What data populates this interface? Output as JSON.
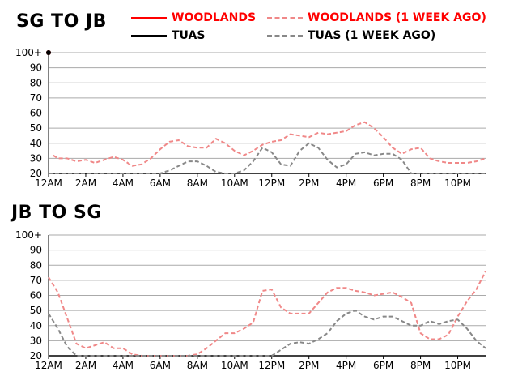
{
  "titles": {
    "top": "SG TO JB",
    "bottom": "JB TO SG"
  },
  "legend": [
    {
      "label": "WOODLANDS",
      "color": "#ff0000",
      "style": "solid"
    },
    {
      "label": "WOODLANDS (1 WEEK AGO)",
      "color": "#f08888",
      "style": "dashed"
    },
    {
      "label": "TUAS",
      "color": "#000000",
      "style": "solid"
    },
    {
      "label": "TUAS (1 WEEK AGO)",
      "color": "#888888",
      "style": "dashed"
    }
  ],
  "chart_data": [
    {
      "type": "line",
      "title": "SG TO JB",
      "x_ticks": [
        "12AM",
        "2AM",
        "4AM",
        "6AM",
        "8AM",
        "10AM",
        "12PM",
        "2PM",
        "4PM",
        "6PM",
        "8PM",
        "10PM"
      ],
      "y_ticks": [
        "20",
        "30",
        "40",
        "50",
        "60",
        "70",
        "80",
        "90",
        "100+"
      ],
      "ylim": [
        20,
        100
      ],
      "xlim": [
        0,
        23.5
      ],
      "grid": true,
      "series": [
        {
          "name": "WOODLANDS",
          "color": "#ff0000",
          "dash": false,
          "x": [
            0
          ],
          "y": [
            100
          ]
        },
        {
          "name": "TUAS",
          "color": "#000000",
          "dash": false,
          "x": [
            0
          ],
          "y": [
            100
          ]
        },
        {
          "name": "WOODLANDS (1 WEEK AGO)",
          "color": "#f08888",
          "dash": true,
          "x": [
            0.25,
            0.5,
            1,
            1.5,
            2,
            2.5,
            3,
            3.5,
            4,
            4.5,
            5,
            5.5,
            6,
            6.5,
            7,
            7.5,
            8,
            8.5,
            9,
            9.5,
            10,
            10.5,
            11,
            11.5,
            12,
            12.5,
            13,
            13.5,
            14,
            14.5,
            15,
            15.5,
            16,
            16.5,
            17,
            17.5,
            18,
            18.5,
            19,
            19.5,
            20,
            20.5,
            21,
            21.5,
            22,
            22.5,
            23,
            23.5
          ],
          "y": [
            32,
            30,
            30,
            28,
            29,
            27,
            29,
            31,
            29,
            25,
            26,
            30,
            36,
            41,
            42,
            38,
            37,
            37,
            43,
            40,
            35,
            32,
            35,
            39,
            41,
            42,
            46,
            45,
            44,
            47,
            46,
            47,
            48,
            52,
            54,
            50,
            44,
            37,
            33,
            36,
            37,
            30,
            28,
            27,
            27,
            27,
            28,
            30
          ]
        },
        {
          "name": "TUAS (1 WEEK AGO)",
          "color": "#888888",
          "dash": true,
          "x": [
            0,
            1,
            2,
            3,
            4,
            5,
            6,
            6.5,
            7,
            7.5,
            8,
            8.5,
            9,
            9.5,
            10,
            10.5,
            11,
            11.5,
            12,
            12.5,
            13,
            13.5,
            14,
            14.5,
            15,
            15.5,
            16,
            16.5,
            17,
            17.5,
            18,
            18.5,
            19,
            19.5,
            20,
            20.5,
            21,
            21.5,
            22,
            22.5,
            23,
            23.5
          ],
          "y": [
            20,
            20,
            20,
            20,
            20,
            20,
            20,
            22,
            25,
            28,
            28,
            25,
            21,
            20,
            20,
            22,
            28,
            37,
            34,
            26,
            25,
            35,
            40,
            37,
            29,
            24,
            26,
            33,
            34,
            32,
            33,
            33,
            29,
            20,
            20,
            20,
            20,
            20,
            20,
            20,
            20,
            20
          ]
        }
      ]
    },
    {
      "type": "line",
      "title": "JB TO SG",
      "x_ticks": [
        "12AM",
        "2AM",
        "4AM",
        "6AM",
        "8AM",
        "10AM",
        "12PM",
        "2PM",
        "4PM",
        "6PM",
        "8PM",
        "10PM"
      ],
      "y_ticks": [
        "20",
        "30",
        "40",
        "50",
        "60",
        "70",
        "80",
        "90",
        "100+"
      ],
      "ylim": [
        20,
        100
      ],
      "xlim": [
        0,
        23.5
      ],
      "grid": true,
      "series": [
        {
          "name": "WOODLANDS (1 WEEK AGO)",
          "color": "#f08888",
          "dash": true,
          "x": [
            0,
            0.5,
            1,
            1.5,
            2,
            2.5,
            3,
            3.5,
            4,
            4.5,
            5,
            5.5,
            6,
            6.5,
            7,
            7.5,
            8,
            8.5,
            9,
            9.5,
            10,
            10.5,
            11,
            11.5,
            12,
            12.5,
            13,
            13.5,
            14,
            14.5,
            15,
            15.5,
            16,
            16.5,
            17,
            17.5,
            18,
            18.5,
            19,
            19.5,
            20,
            20.5,
            21,
            21.5,
            22,
            22.5,
            23,
            23.5
          ],
          "y": [
            72,
            62,
            45,
            28,
            25,
            27,
            29,
            25,
            25,
            21,
            20,
            20,
            20,
            20,
            20,
            20,
            21,
            25,
            30,
            35,
            35,
            38,
            42,
            63,
            64,
            52,
            48,
            48,
            48,
            55,
            62,
            65,
            65,
            63,
            62,
            60,
            61,
            62,
            59,
            55,
            35,
            31,
            31,
            34,
            46,
            56,
            64,
            76
          ]
        },
        {
          "name": "TUAS (1 WEEK AGO)",
          "color": "#888888",
          "dash": true,
          "x": [
            0,
            0.5,
            1,
            1.5,
            2,
            3,
            4,
            5,
            6,
            7,
            8,
            9,
            10,
            11,
            11.5,
            12,
            12.5,
            13,
            13.5,
            14,
            14.5,
            15,
            15.5,
            16,
            16.5,
            17,
            17.5,
            18,
            18.5,
            19,
            19.5,
            20,
            20.5,
            21,
            21.5,
            22,
            22.5,
            23,
            23.5
          ],
          "y": [
            48,
            38,
            26,
            20,
            20,
            20,
            20,
            20,
            20,
            20,
            20,
            20,
            20,
            20,
            20,
            20,
            24,
            28,
            29,
            28,
            31,
            35,
            43,
            48,
            50,
            46,
            44,
            46,
            46,
            43,
            40,
            40,
            43,
            41,
            43,
            44,
            38,
            30,
            25
          ]
        }
      ]
    }
  ]
}
